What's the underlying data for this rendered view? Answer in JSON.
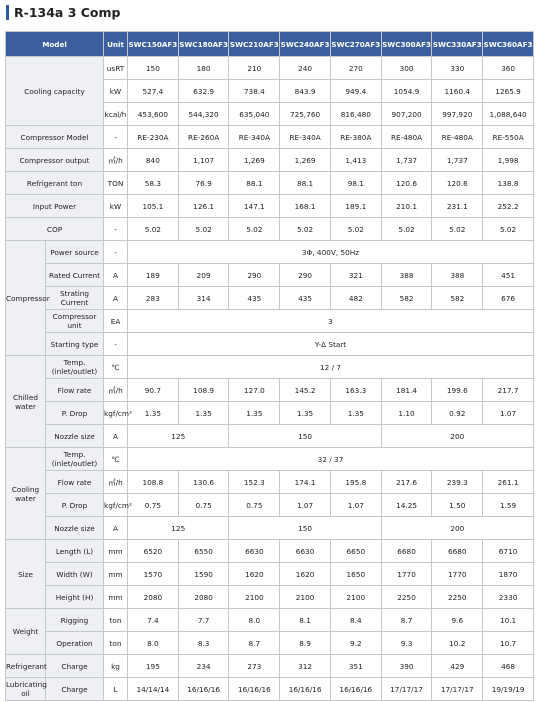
{
  "header": {
    "title": "R-134a 3 Comp"
  },
  "table": {
    "model_label": "Model",
    "unit_label": "Unit",
    "models": [
      "SWC150AF3",
      "SWC180AF3",
      "SWC210AF3",
      "SWC240AF3",
      "SWC270AF3",
      "SWC300AF3",
      "SWC330AF3",
      "SWC360AF3"
    ],
    "groups": [
      {
        "label": "Cooling capacity",
        "rows": [
          {
            "unit": "usRT",
            "values": [
              "150",
              "180",
              "210",
              "240",
              "270",
              "300",
              "330",
              "360"
            ]
          },
          {
            "unit": "kW",
            "values": [
              "527.4",
              "632.9",
              "738.4",
              "843.9",
              "949.4",
              "1054.9",
              "1160.4",
              "1265.9"
            ]
          },
          {
            "unit": "kcal/h",
            "values": [
              "453,600",
              "544,320",
              "635,040",
              "725,760",
              "816,480",
              "907,200",
              "997,920",
              "1,088,640"
            ]
          }
        ]
      },
      {
        "rows": [
          {
            "name": "Compressor Model",
            "unit": "-",
            "values": [
              "RE-230A",
              "RE-260A",
              "RE-340A",
              "RE-340A",
              "RE-380A",
              "RE-480A",
              "RE-480A",
              "RE-550A"
            ]
          }
        ]
      },
      {
        "rows": [
          {
            "name": "Compressor output",
            "unit": "㎥/h",
            "values": [
              "840",
              "1,107",
              "1,269",
              "1,269",
              "1,413",
              "1,737",
              "1,737",
              "1,998"
            ]
          }
        ]
      },
      {
        "rows": [
          {
            "name": "Refrigerant ton",
            "unit": "TON",
            "values": [
              "58.3",
              "76.9",
              "88.1",
              "88.1",
              "98.1",
              "120.6",
              "120.6",
              "138.8"
            ]
          }
        ]
      },
      {
        "rows": [
          {
            "name": "Input Power",
            "unit": "kW",
            "values": [
              "105.1",
              "126.1",
              "147.1",
              "168.1",
              "189.1",
              "210.1",
              "231.1",
              "252.2"
            ]
          }
        ]
      },
      {
        "rows": [
          {
            "name": "COP",
            "unit": "-",
            "values": [
              "5.02",
              "5.02",
              "5.02",
              "5.02",
              "5.02",
              "5.02",
              "5.02",
              "5.02"
            ]
          }
        ]
      },
      {
        "label": "Compressor",
        "rows": [
          {
            "name": "Power source",
            "unit": "-",
            "values": [
              "3Φ, 400V, 50Hz"
            ]
          },
          {
            "name": "Rated Current",
            "unit": "A",
            "values": [
              "189",
              "209",
              "290",
              "290",
              "321",
              "388",
              "388",
              "451"
            ]
          },
          {
            "name": "Strating Current",
            "unit": "A",
            "values": [
              "283",
              "314",
              "435",
              "435",
              "482",
              "582",
              "582",
              "676"
            ]
          },
          {
            "name": "Compressor unit",
            "unit": "EA",
            "values": [
              "3"
            ]
          },
          {
            "name": "Starting type",
            "unit": "-",
            "values": [
              "Y-Δ Start"
            ]
          }
        ]
      },
      {
        "label": "Chilled water",
        "rows": [
          {
            "name": "Temp.(inlet/outlet)",
            "unit": "℃",
            "values": [
              "12 / 7"
            ]
          },
          {
            "name": "Flow rate",
            "unit": "㎥/h",
            "values": [
              "90.7",
              "108.9",
              "127.0",
              "145.2",
              "163.3",
              "181.4",
              "199.6",
              "217.7"
            ]
          },
          {
            "name": "P. Drop",
            "unit": "kgf/cm²",
            "values": [
              "1.35",
              "1.35",
              "1.35",
              "1.35",
              "1.35",
              "1.10",
              "0.92",
              "1.07"
            ]
          },
          {
            "name": "Nozzle size",
            "unit": "A",
            "values": [
              "125",
              "150",
              "200"
            ]
          }
        ]
      },
      {
        "label": "Cooling water",
        "rows": [
          {
            "name": "Temp.(inlet/outlet)",
            "unit": "℃",
            "values": [
              "32 / 37"
            ]
          },
          {
            "name": "Flow rate",
            "unit": "㎥/h",
            "values": [
              "108.8",
              "130.6",
              "152.3",
              "174.1",
              "195.8",
              "217.6",
              "239.3",
              "261.1"
            ]
          },
          {
            "name": "P. Drop",
            "unit": "kgf/cm²",
            "values": [
              "0.75",
              "0.75",
              "0.75",
              "1.07",
              "1.07",
              "14.25",
              "1.50",
              "1.59"
            ]
          },
          {
            "name": "Nozzle size",
            "unit": "A",
            "values": [
              "125",
              "150",
              "200"
            ]
          }
        ]
      },
      {
        "label": "Size",
        "rows": [
          {
            "name": "Length (L)",
            "unit": "mm",
            "values": [
              "6520",
              "6550",
              "6630",
              "6630",
              "6650",
              "6680",
              "6680",
              "6710"
            ]
          },
          {
            "name": "Width (W)",
            "unit": "mm",
            "values": [
              "1570",
              "1590",
              "1620",
              "1620",
              "1650",
              "1770",
              "1770",
              "1870"
            ]
          },
          {
            "name": "Height (H)",
            "unit": "mm",
            "values": [
              "2080",
              "2080",
              "2100",
              "2100",
              "2100",
              "2250",
              "2250",
              "2330"
            ]
          }
        ]
      },
      {
        "label": "Weight",
        "rows": [
          {
            "name": "Rigging",
            "unit": "ton",
            "values": [
              "7.4",
              "7.7",
              "8.0",
              "8.1",
              "8.4",
              "8.7",
              "9.6",
              "10.1"
            ]
          },
          {
            "name": "Operation",
            "unit": "ton",
            "values": [
              "8.0",
              "8.3",
              "8.7",
              "8.9",
              "9.2",
              "9.3",
              "10.2",
              "10.7"
            ]
          }
        ]
      },
      {
        "label": "Refrigerant",
        "rows": [
          {
            "name": "Charge",
            "unit": "kg",
            "values": [
              "195",
              "234",
              "273",
              "312",
              "351",
              "390",
              "429",
              "468"
            ]
          }
        ]
      },
      {
        "label": "Lubricating oil",
        "rows": [
          {
            "name": "Charge",
            "unit": "L",
            "values": [
              "14/14/14",
              "16/16/16",
              "16/16/16",
              "16/16/16",
              "16/16/16",
              "17/17/17",
              "17/17/17",
              "19/19/19"
            ]
          }
        ]
      }
    ]
  }
}
